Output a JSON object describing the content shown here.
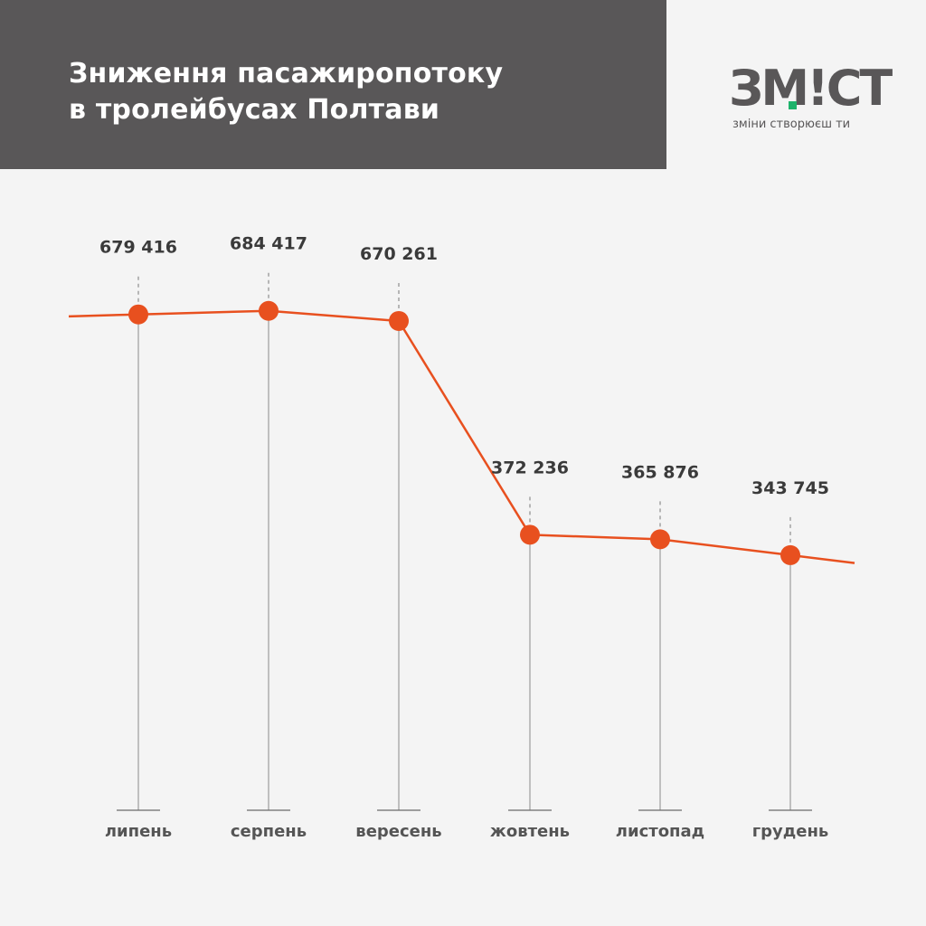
{
  "header": {
    "title_line1": "Зниження пасажиропотоку",
    "title_line2": "в тролейбусах Полтави"
  },
  "logo": {
    "mark_left": "ЗМ",
    "mark_bang": "!",
    "mark_right": "СТ",
    "tagline": "зміни створюєш ти",
    "accent_color": "#1db36b",
    "text_color": "#595758"
  },
  "chart_data": {
    "type": "line",
    "categories": [
      "липень",
      "серпень",
      "вересень",
      "жовтень",
      "листопад",
      "грудень"
    ],
    "values": [
      679416,
      684417,
      670261,
      372236,
      365876,
      343745
    ],
    "value_labels": [
      "679 416",
      "684 417",
      "670 261",
      "372 236",
      "365 876",
      "343 745"
    ],
    "line_color": "#e8501f",
    "grid": false,
    "legend": "none"
  }
}
